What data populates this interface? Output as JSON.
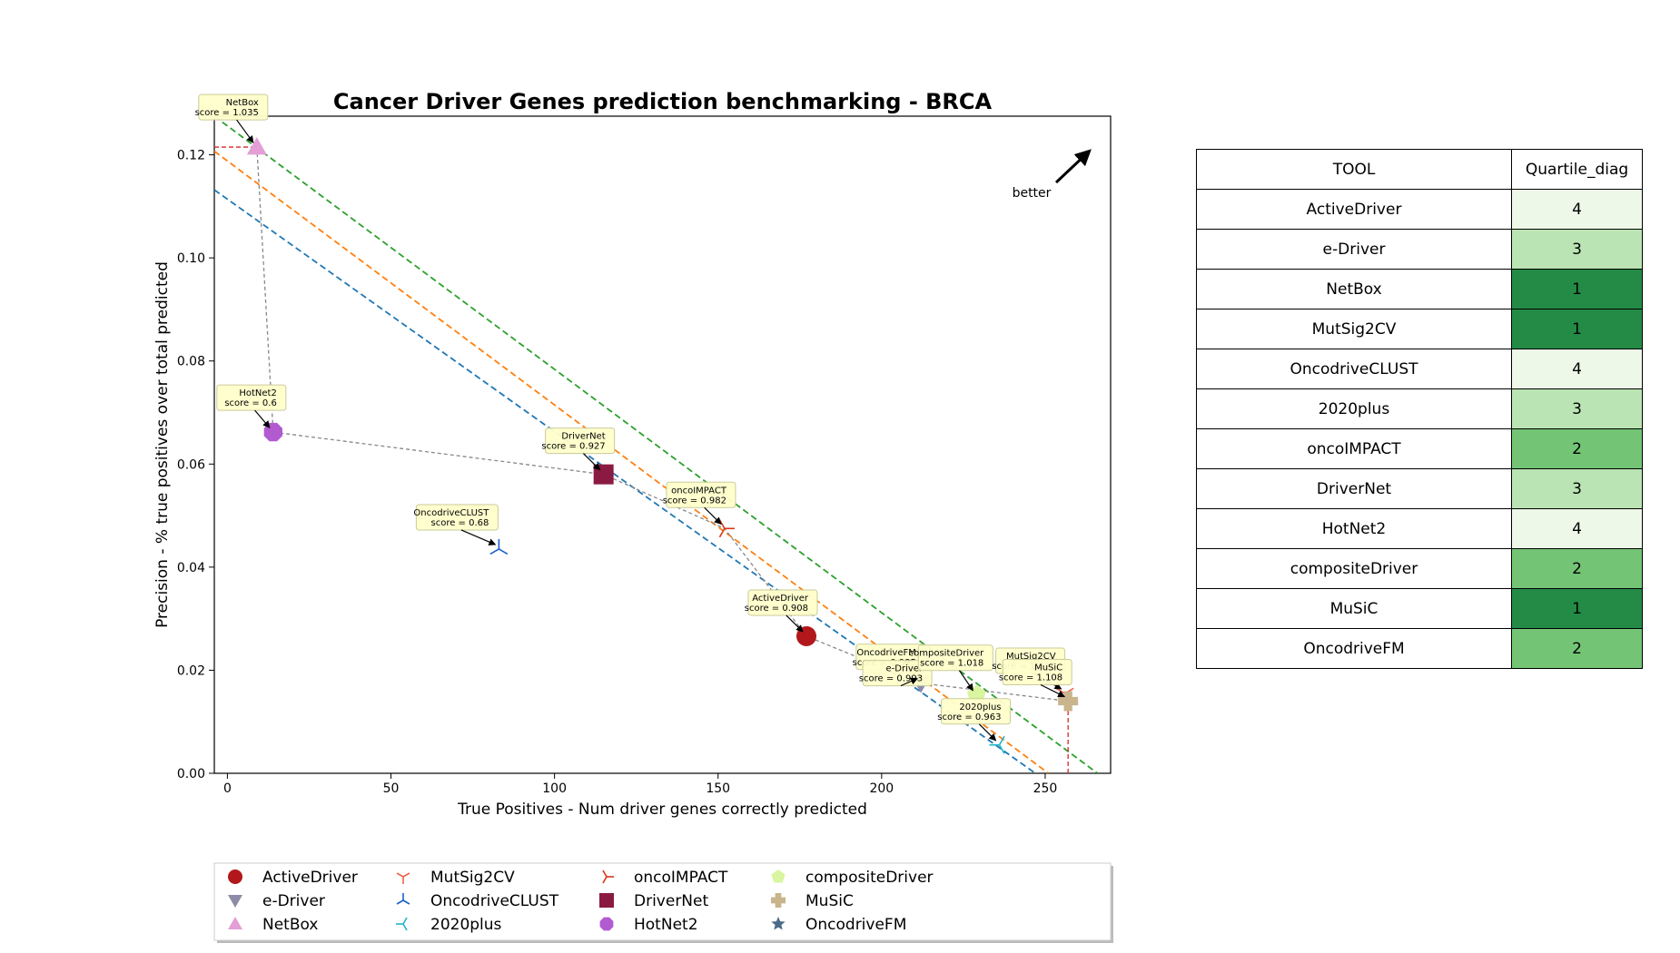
{
  "chart_data": {
    "type": "scatter",
    "title": "Cancer Driver Genes prediction benchmarking - BRCA",
    "xlabel": "True Positives - Num driver genes correctly predicted",
    "ylabel": "Precision - % true positives over total predicted",
    "xlim": [
      -4,
      270
    ],
    "ylim": [
      0,
      0.1275
    ],
    "xticks": [
      "0",
      "50",
      "100",
      "150",
      "200",
      "250"
    ],
    "xtick_values": [
      0,
      50,
      100,
      150,
      200,
      250
    ],
    "yticks": [
      "0.00",
      "0.02",
      "0.04",
      "0.06",
      "0.08",
      "0.10",
      "0.12"
    ],
    "ytick_values": [
      0,
      0.02,
      0.04,
      0.06,
      0.08,
      0.1,
      0.12
    ],
    "better_label": "better",
    "series": [
      {
        "name": "ActiveDriver",
        "x": 177,
        "y": 0.0266,
        "score": "0.908",
        "color": "#b2181b",
        "marker": "circle"
      },
      {
        "name": "e-Driver",
        "x": 212,
        "y": 0.0175,
        "score": "0.993",
        "color": "#8e8ba8",
        "marker": "triangle-down"
      },
      {
        "name": "NetBox",
        "x": 9,
        "y": 0.1215,
        "score": "1.035",
        "color": "#e39fd6",
        "marker": "triangle-up"
      },
      {
        "name": "MutSig2CV",
        "x": 256,
        "y": 0.0155,
        "score": "1.106",
        "color": "#f0644a",
        "marker": "tri-down"
      },
      {
        "name": "OncodriveCLUST",
        "x": 83,
        "y": 0.0435,
        "score": "0.68",
        "color": "#1a60c9",
        "marker": "tri-up"
      },
      {
        "name": "2020plus",
        "x": 236,
        "y": 0.0055,
        "score": "0.963",
        "color": "#21b6c9",
        "marker": "tri-left"
      },
      {
        "name": "oncoIMPACT",
        "x": 152,
        "y": 0.0475,
        "score": "0.982",
        "color": "#d9361a",
        "marker": "tri-right"
      },
      {
        "name": "DriverNet",
        "x": 115,
        "y": 0.058,
        "score": "0.927",
        "color": "#8b1a43",
        "marker": "square"
      },
      {
        "name": "HotNet2",
        "x": 14,
        "y": 0.0662,
        "score": "0.6",
        "color": "#b25bd1",
        "marker": "octagon"
      },
      {
        "name": "compositeDriver",
        "x": 229,
        "y": 0.0152,
        "score": "1.018",
        "color": "#d9f5a0",
        "marker": "pentagon"
      },
      {
        "name": "MuSiC",
        "x": 257,
        "y": 0.014,
        "score": "1.108",
        "color": "#c9b48c",
        "marker": "plus"
      },
      {
        "name": "OncodriveFM",
        "x": 210,
        "y": 0.021,
        "score": "0.985",
        "color": "#4a6a8a",
        "marker": "star"
      }
    ],
    "annotations": [
      {
        "name": "NetBox",
        "line1": "NetBox",
        "line2": "score = 1.035"
      },
      {
        "name": "HotNet2",
        "line1": "HotNet2",
        "line2": "score = 0.6"
      },
      {
        "name": "DriverNet",
        "line1": "DriverNet",
        "line2": "score = 0.927"
      },
      {
        "name": "oncoIMPACT",
        "line1": "oncoIMPACT",
        "line2": "score = 0.982"
      },
      {
        "name": "OncodriveCLUST",
        "line1": "OncodriveCLUST",
        "line2": "score = 0.68"
      },
      {
        "name": "ActiveDriver",
        "line1": "ActiveDriver",
        "line2": "score = 0.908"
      },
      {
        "name": "OncodriveFM",
        "line1": "OncodriveFM",
        "line2": "score = 0.985"
      },
      {
        "name": "e-Driver",
        "line1": "e-Driver",
        "line2": "score = 0.993"
      },
      {
        "name": "compositeDriver",
        "line1": "compositeDriver",
        "line2": "score = 1.018"
      },
      {
        "name": "2020plus",
        "line1": "2020plus",
        "line2": "score = 0.963"
      },
      {
        "name": "MutSig2CV",
        "line1": "MutSig2CV",
        "line2": "score = 1.106"
      },
      {
        "name": "MuSiC",
        "line1": "MuSiC",
        "line2": "score = 1.108"
      }
    ],
    "pareto_front": [
      [
        9,
        0.1215
      ],
      [
        14,
        0.0662
      ],
      [
        115,
        0.058
      ],
      [
        152,
        0.0475
      ],
      [
        177,
        0.0266
      ],
      [
        212,
        0.0175
      ],
      [
        257,
        0.014
      ]
    ],
    "quartile_lines": [
      {
        "color": "#1f77b4",
        "x0": -4,
        "y0": 0.1132,
        "x1": 247,
        "y1": 0
      },
      {
        "color": "#ff7f0e",
        "x0": -4,
        "y0": 0.1207,
        "x1": 251,
        "y1": 0
      },
      {
        "color": "#2ca02c",
        "x0": -4,
        "y0": 0.1275,
        "x1": 266,
        "y1": 0
      }
    ],
    "optimal_point_lines": {
      "color": "#d62728",
      "x": 257,
      "y": 0.1215
    },
    "legend": {
      "placement": "bottom",
      "columns": 5
    }
  },
  "table": {
    "headers": [
      "TOOL",
      "Quartile_diag"
    ],
    "rows": [
      {
        "tool": "ActiveDriver",
        "quartile": "4",
        "color": "#edf8e9"
      },
      {
        "tool": "e-Driver",
        "quartile": "3",
        "color": "#bae4b3"
      },
      {
        "tool": "NetBox",
        "quartile": "1",
        "color": "#238b45"
      },
      {
        "tool": "MutSig2CV",
        "quartile": "1",
        "color": "#238b45"
      },
      {
        "tool": "OncodriveCLUST",
        "quartile": "4",
        "color": "#edf8e9"
      },
      {
        "tool": "2020plus",
        "quartile": "3",
        "color": "#bae4b3"
      },
      {
        "tool": "oncoIMPACT",
        "quartile": "2",
        "color": "#74c476"
      },
      {
        "tool": "DriverNet",
        "quartile": "3",
        "color": "#bae4b3"
      },
      {
        "tool": "HotNet2",
        "quartile": "4",
        "color": "#edf8e9"
      },
      {
        "tool": "compositeDriver",
        "quartile": "2",
        "color": "#74c476"
      },
      {
        "tool": "MuSiC",
        "quartile": "1",
        "color": "#238b45"
      },
      {
        "tool": "OncodriveFM",
        "quartile": "2",
        "color": "#74c476"
      }
    ]
  }
}
